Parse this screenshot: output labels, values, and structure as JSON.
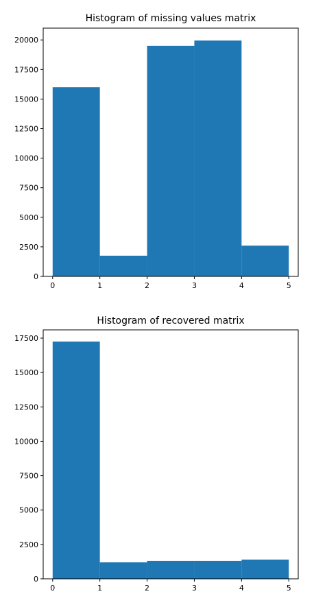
{
  "colors": {
    "bar": "#1f77b4",
    "axis": "#000000",
    "background": "#ffffff"
  },
  "chart_data": [
    {
      "type": "bar",
      "title": "Histogram of missing values matrix",
      "bins": [
        [
          0,
          1
        ],
        [
          1,
          2
        ],
        [
          2,
          3
        ],
        [
          3,
          4
        ],
        [
          4,
          5
        ]
      ],
      "values": [
        16000,
        1750,
        19500,
        19950,
        2600
      ],
      "xlim": [
        -0.2,
        5.2
      ],
      "ylim": [
        0,
        21000
      ],
      "xticks": [
        0,
        1,
        2,
        3,
        4,
        5
      ],
      "yticks": [
        0,
        2500,
        5000,
        7500,
        10000,
        12500,
        15000,
        17500,
        20000
      ],
      "xlabel": "",
      "ylabel": "",
      "grid": false
    },
    {
      "type": "bar",
      "title": "Histogram of recovered matrix",
      "bins": [
        [
          0,
          1
        ],
        [
          1,
          2
        ],
        [
          2,
          3
        ],
        [
          3,
          4
        ],
        [
          4,
          5
        ]
      ],
      "values": [
        17250,
        1200,
        1300,
        1300,
        1400
      ],
      "xlim": [
        -0.2,
        5.2
      ],
      "ylim": [
        0,
        18100
      ],
      "xticks": [
        0,
        1,
        2,
        3,
        4,
        5
      ],
      "yticks": [
        0,
        2500,
        5000,
        7500,
        10000,
        12500,
        15000,
        17500
      ],
      "xlabel": "",
      "ylabel": "",
      "grid": false
    }
  ]
}
